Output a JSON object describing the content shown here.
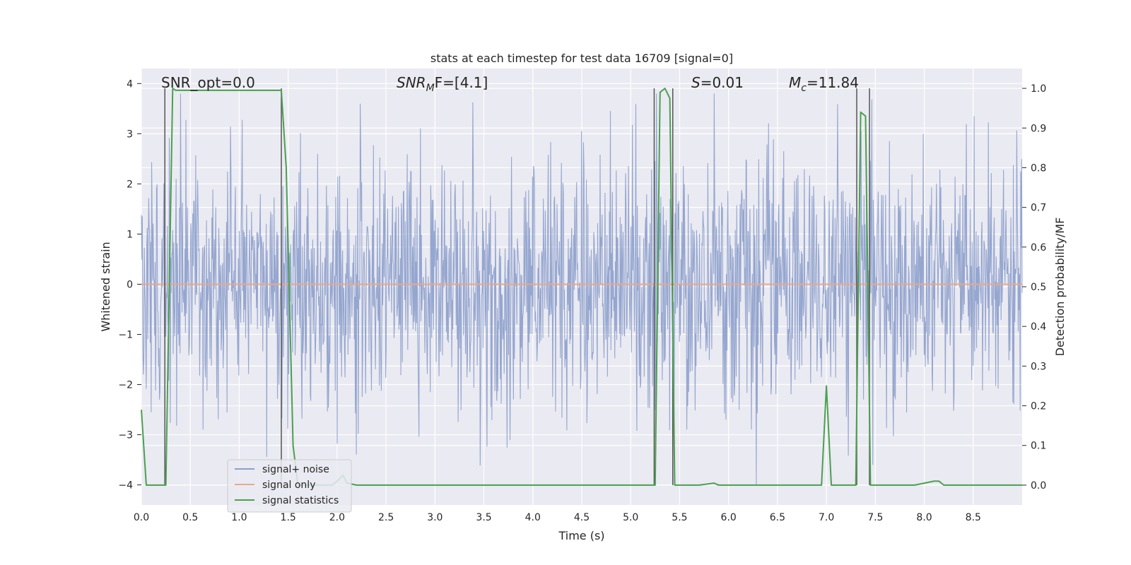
{
  "chart_data": {
    "type": "line",
    "title": "stats at each timestep for test data 16709 [signal=0]",
    "xlabel": "Time (s)",
    "ylabel_left": "Whitened strain",
    "ylabel_right": "Detection probability/MF",
    "xlim": [
      0,
      9.0
    ],
    "ylim_left": [
      -4.4,
      4.3
    ],
    "ylim_right": [
      -0.05,
      1.05
    ],
    "x_ticks": [
      0.0,
      0.5,
      1.0,
      1.5,
      2.0,
      2.5,
      3.0,
      3.5,
      4.0,
      4.5,
      5.0,
      5.5,
      6.0,
      6.5,
      7.0,
      7.5,
      8.0,
      8.5
    ],
    "x_tick_labels": [
      "0.0",
      "0.5",
      "1.0",
      "1.5",
      "2.0",
      "2.5",
      "3.0",
      "3.5",
      "4.0",
      "4.5",
      "5.0",
      "5.5",
      "6.0",
      "6.5",
      "7.0",
      "7.5",
      "8.0",
      "8.5"
    ],
    "y_left_ticks": [
      4,
      3,
      2,
      1,
      0,
      -1,
      -2,
      -3,
      -4
    ],
    "y_left_tick_labels": [
      "4",
      "3",
      "2",
      "1",
      "0",
      "−1",
      "−2",
      "−3",
      "−4"
    ],
    "y_right_ticks": [
      1.0,
      0.9,
      0.8,
      0.7,
      0.6,
      0.5,
      0.4,
      0.3,
      0.2,
      0.1,
      0.0
    ],
    "y_right_tick_labels": [
      "1.0",
      "0.9",
      "0.8",
      "0.7",
      "0.6",
      "0.5",
      "0.4",
      "0.3",
      "0.2",
      "0.1",
      "0.0"
    ],
    "annotations": {
      "snr_opt": "SNR_opt=0.0",
      "snr_mf_main": "SNR",
      "snr_mf_sub": "M",
      "snr_mf_rest": "F=[4.1]",
      "s_main": "S",
      "s_rest": "=0.01",
      "mc_main": "M",
      "mc_sub": "c",
      "mc_rest": "=11.84"
    },
    "legend": [
      {
        "label": "signal+ noise",
        "color": "#8c9fcb"
      },
      {
        "label": "signal only",
        "color": "#e6a98e"
      },
      {
        "label": "signal statistics",
        "color": "#4ba04f"
      }
    ],
    "series": [
      {
        "name": "signal+ noise",
        "axis": "left",
        "description": "whitened strain noise, approx. range -4 to 3.8",
        "sample_count": 1800,
        "amplitude_sigma": 1.2
      },
      {
        "name": "signal only",
        "axis": "left",
        "x": [
          0.0,
          9.0
        ],
        "y": [
          0.0,
          0.0
        ]
      },
      {
        "name": "signal statistics",
        "axis": "right",
        "x": [
          0.0,
          0.05,
          0.15,
          0.25,
          0.32,
          0.35,
          1.43,
          1.48,
          1.55,
          1.6,
          1.8,
          1.95,
          2.0,
          2.06,
          2.1,
          2.2,
          2.6,
          3.0,
          3.5,
          4.0,
          4.5,
          5.0,
          5.25,
          5.3,
          5.35,
          5.4,
          5.45,
          5.5,
          5.7,
          5.85,
          5.9,
          6.0,
          6.5,
          6.95,
          7.0,
          7.05,
          7.1,
          7.3,
          7.35,
          7.4,
          7.45,
          7.5,
          7.7,
          7.9,
          8.0,
          8.1,
          8.15,
          8.2,
          8.3,
          8.5,
          9.0
        ],
        "y": [
          0.19,
          0.0,
          0.0,
          0.0,
          1.0,
          0.995,
          0.995,
          0.8,
          0.1,
          0.0,
          0.0,
          0.0,
          0.01,
          0.025,
          0.005,
          0.0,
          0.0,
          0.0,
          0.0,
          0.0,
          0.0,
          0.0,
          0.0,
          0.99,
          1.0,
          0.975,
          0.0,
          0.0,
          0.0,
          0.005,
          0.0,
          0.0,
          0.0,
          0.0,
          0.25,
          0.0,
          0.0,
          0.0,
          0.94,
          0.93,
          0.0,
          0.0,
          0.0,
          0.0,
          0.005,
          0.01,
          0.01,
          0.0,
          0.0,
          0.0,
          0.0
        ]
      }
    ],
    "vertical_lines": [
      0.24,
      1.43,
      5.24,
      5.43,
      7.31,
      7.44
    ]
  }
}
